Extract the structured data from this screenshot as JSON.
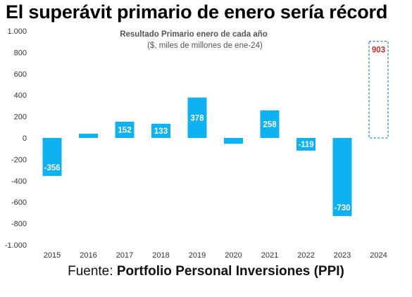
{
  "headline": "El superávit primario de enero sería récord",
  "source": {
    "prefix": "Fuente: ",
    "name": "Portfolio Personal Inversiones (PPI)"
  },
  "colors": {
    "bar": "#0fb2f0",
    "projection_border": "#2b7fd4",
    "projection_label": "#d62828",
    "bar_label": "#ffffff",
    "axis_text": "#333333"
  },
  "chart_data": {
    "type": "bar",
    "title": "Resultado Primario enero de cada año",
    "subtitle": "($, miles de millones de ene-24)",
    "xlabel": "",
    "ylabel": "",
    "categories": [
      "2015",
      "2016",
      "2017",
      "2018",
      "2019",
      "2020",
      "2021",
      "2022",
      "2023",
      "2024"
    ],
    "values": [
      -356,
      40,
      152,
      133,
      378,
      -55,
      258,
      -119,
      -730,
      903
    ],
    "data_labels": [
      "-356",
      "",
      "152",
      "133",
      "378",
      "",
      "258",
      "-119",
      "-730",
      "903"
    ],
    "projected": [
      false,
      false,
      false,
      false,
      false,
      false,
      false,
      false,
      false,
      true
    ],
    "ylim": [
      -1000,
      1000
    ],
    "yticks": [
      1000,
      800,
      600,
      400,
      200,
      0,
      -200,
      -400,
      -600,
      -800,
      -1000
    ],
    "ytick_labels": [
      "1.000",
      "800",
      "600",
      "400",
      "200",
      "0",
      "-200",
      "-400",
      "-600",
      "-800",
      "-1.000"
    ],
    "grid": false,
    "legend": "none"
  }
}
